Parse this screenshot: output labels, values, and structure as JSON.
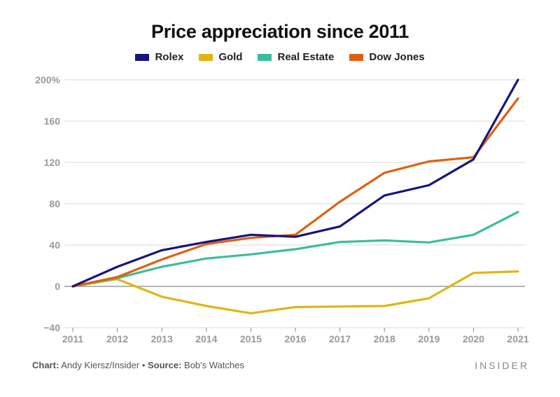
{
  "chart_data": {
    "type": "line",
    "title": "Price appreciation since 2011",
    "x": [
      "2011",
      "2012",
      "2013",
      "2014",
      "2015",
      "2016",
      "2017",
      "2018",
      "2019",
      "2020",
      "2021"
    ],
    "ylim": [
      -40,
      200
    ],
    "yticks": [
      -40,
      0,
      40,
      80,
      120,
      160,
      200
    ],
    "ytick_labels": [
      "−40",
      "0",
      "40",
      "80",
      "120",
      "160",
      "200%"
    ],
    "grid": true,
    "legend_position": "top-center",
    "series": [
      {
        "name": "Rolex",
        "color": "#15157d",
        "values": [
          0,
          19,
          35,
          43,
          50,
          48,
          58,
          88,
          98,
          123,
          200
        ]
      },
      {
        "name": "Gold",
        "color": "#e0b615",
        "values": [
          0,
          7,
          -10,
          -19,
          -26,
          -20,
          -19.5,
          -19,
          -11.5,
          13,
          14.5
        ]
      },
      {
        "name": "Real Estate",
        "color": "#3bbd9c",
        "values": [
          0,
          8,
          19,
          27,
          31,
          36,
          43,
          44.5,
          42.5,
          50,
          72
        ]
      },
      {
        "name": "Dow Jones",
        "color": "#e06010",
        "values": [
          0,
          9,
          26,
          41,
          47,
          50,
          82,
          110,
          121,
          125,
          182
        ]
      }
    ]
  },
  "footer": {
    "chart_label": "Chart:",
    "chart_author": "Andy Kiersz/Insider",
    "separator": "•",
    "source_label": "Source:",
    "source_text": "Bob's Watches",
    "brand": "INSIDER"
  }
}
